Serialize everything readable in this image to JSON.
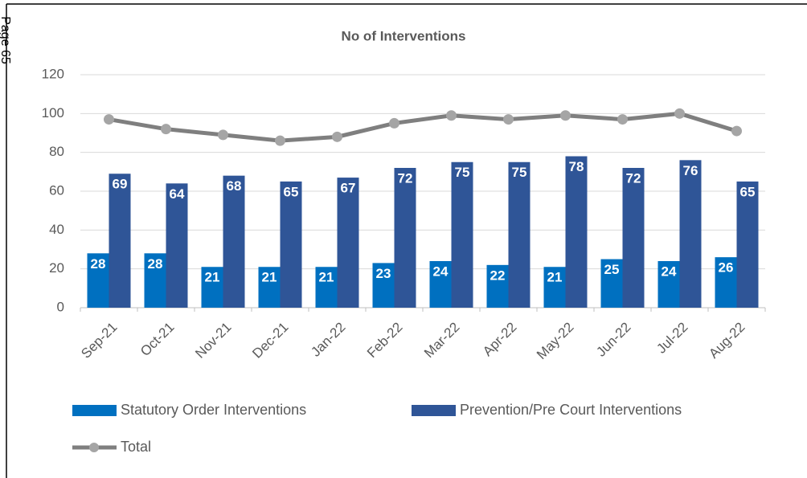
{
  "page_label": "Page 65",
  "chart_data": {
    "type": "bar",
    "title": "No of Interventions",
    "categories": [
      "Sep-21",
      "Oct-21",
      "Nov-21",
      "Dec-21",
      "Jan-22",
      "Feb-22",
      "Mar-22",
      "Apr-22",
      "May-22",
      "Jun-22",
      "Jul-22",
      "Aug-22"
    ],
    "series": [
      {
        "name": "Statutory Order Interventions",
        "type": "bar",
        "color": "#0070c0",
        "values": [
          28,
          28,
          21,
          21,
          21,
          23,
          24,
          22,
          21,
          25,
          24,
          26
        ]
      },
      {
        "name": "Prevention/Pre Court Interventions",
        "type": "bar",
        "color": "#2f5597",
        "values": [
          69,
          64,
          68,
          65,
          67,
          72,
          75,
          75,
          78,
          72,
          76,
          65
        ]
      },
      {
        "name": "Total",
        "type": "line",
        "color": "#7f7f7f",
        "values": [
          97,
          92,
          89,
          86,
          88,
          95,
          99,
          97,
          99,
          97,
          100,
          91
        ]
      }
    ],
    "ylim": [
      0,
      120
    ],
    "yticks": [
      0,
      20,
      40,
      60,
      80,
      100,
      120
    ],
    "grid": true
  }
}
